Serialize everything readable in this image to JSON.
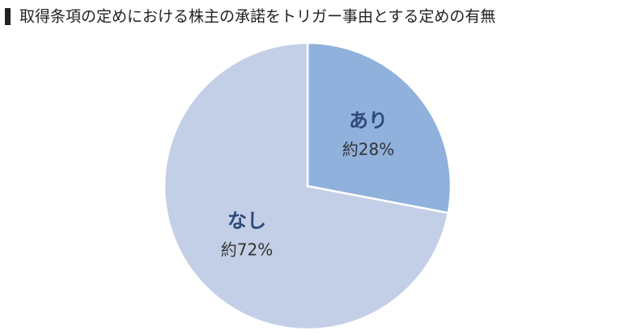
{
  "chart_data": {
    "type": "pie",
    "title": "取得条項の定めにおける株主の承諾をトリガー事由とする定めの有無",
    "categories": [
      "あり",
      "なし"
    ],
    "values": [
      28,
      72
    ],
    "value_labels": [
      "約28%",
      "約72%"
    ],
    "colors": [
      "#8fb1dc",
      "#c3cfe6"
    ]
  }
}
